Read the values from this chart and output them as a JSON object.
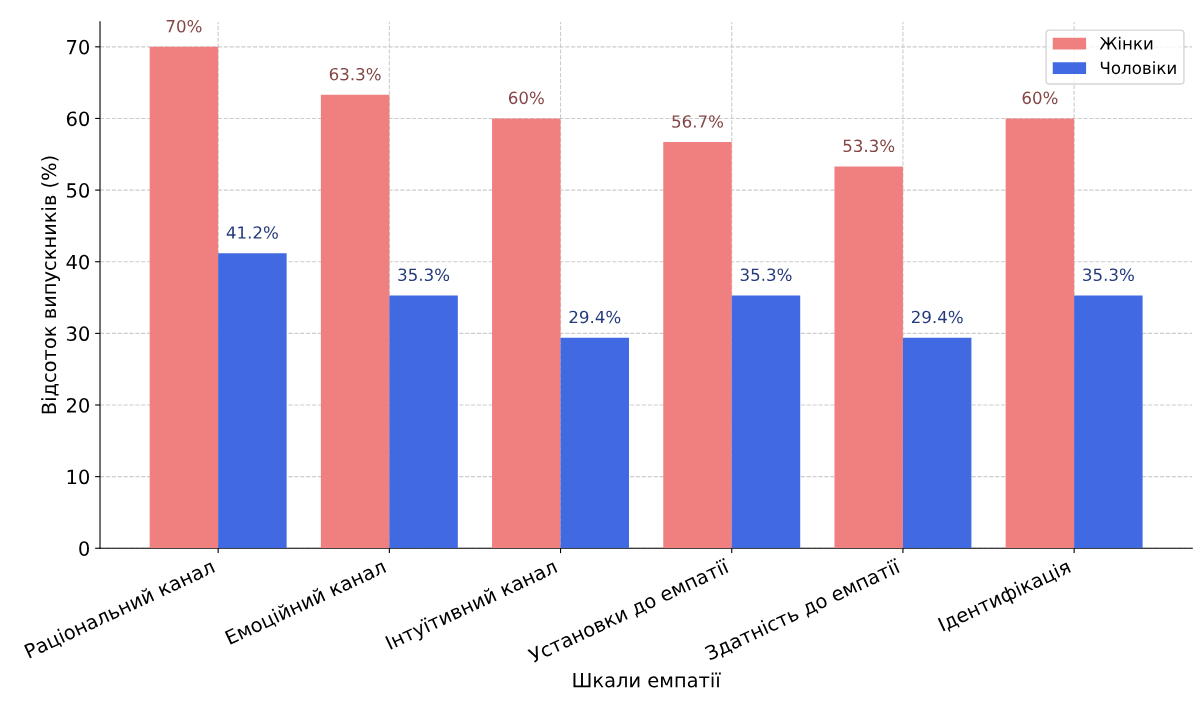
{
  "chart_data": {
    "type": "bar",
    "xlabel": "Шкали емпатії",
    "ylabel": "Відсоток випускників (%)",
    "categories": [
      "Раціональний канал",
      "Емоційний канал",
      "Інтуїтивний канал",
      "Установки до емпатії",
      "Здатність до емпатії",
      "Ідентифікація"
    ],
    "series": [
      {
        "name": "Жінки",
        "color": "#f08080",
        "values": [
          70,
          63.3,
          60,
          56.7,
          53.3,
          60
        ]
      },
      {
        "name": "Чоловіки",
        "color": "#4169e1",
        "values": [
          41.2,
          35.3,
          29.4,
          35.3,
          29.4,
          35.3
        ]
      }
    ],
    "value_labels": [
      [
        "70%",
        "63.3%",
        "60%",
        "56.7%",
        "53.3%",
        "60%"
      ],
      [
        "41.2%",
        "35.3%",
        "29.4%",
        "35.3%",
        "29.4%",
        "35.3%"
      ]
    ],
    "ylim": [
      0,
      73.5
    ],
    "yticks": [
      0,
      10,
      20,
      30,
      40,
      50,
      60,
      70
    ],
    "grid": true,
    "legend": "top right"
  }
}
